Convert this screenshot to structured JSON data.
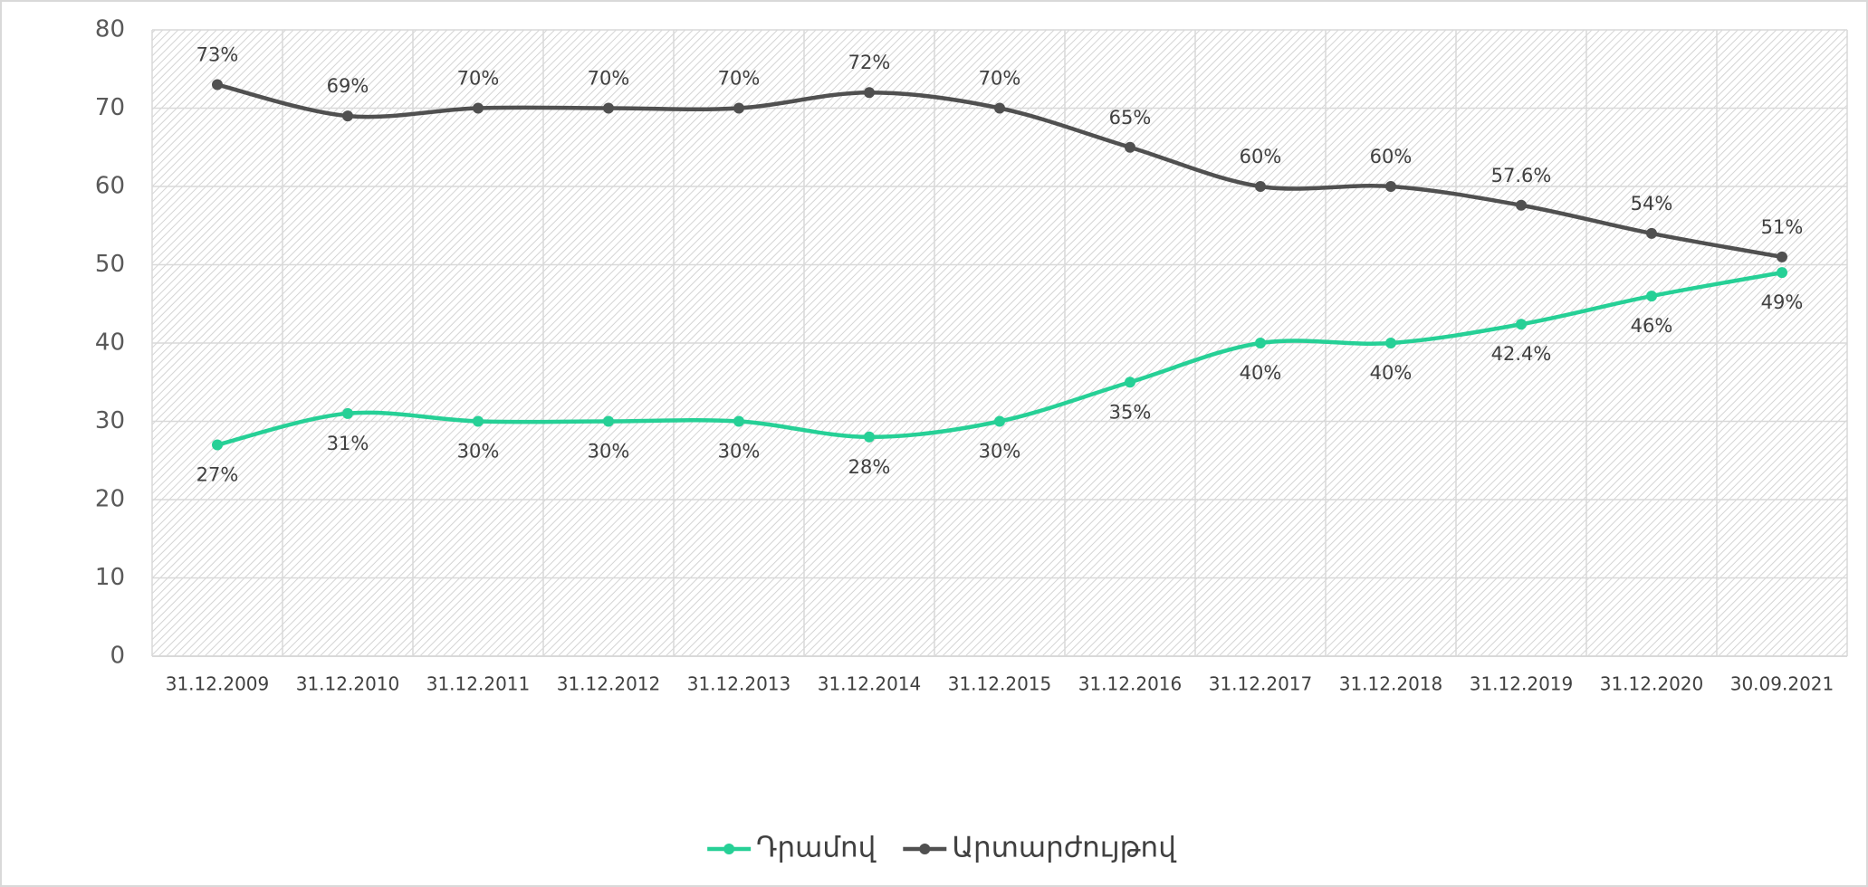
{
  "chart_data": {
    "type": "line",
    "categories": [
      "31.12.2009",
      "31.12.2010",
      "31.12.2011",
      "31.12.2012",
      "31.12.2013",
      "31.12.2014",
      "31.12.2015",
      "31.12.2016",
      "31.12.2017",
      "31.12.2018",
      "31.12.2019",
      "31.12.2020",
      "30.09.2021"
    ],
    "series": [
      {
        "name": "Դրամով",
        "color": "#26d096",
        "values": [
          27,
          31,
          30,
          30,
          30,
          28,
          30,
          35,
          40,
          40,
          42.4,
          46,
          49
        ],
        "value_labels": [
          "27%",
          "31%",
          "30%",
          "30%",
          "30%",
          "28%",
          "30%",
          "35%",
          "40%",
          "40%",
          "42.4%",
          "46%",
          "49%"
        ]
      },
      {
        "name": "Արտարժույթով",
        "color": "#505050",
        "values": [
          73,
          69,
          70,
          70,
          70,
          72,
          70,
          65,
          60,
          60,
          57.6,
          54,
          51
        ],
        "value_labels": [
          "73%",
          "69%",
          "70%",
          "70%",
          "70%",
          "72%",
          "70%",
          "65%",
          "60%",
          "60%",
          "57.6%",
          "54%",
          "51%"
        ]
      }
    ],
    "ylim": [
      0,
      80
    ],
    "yticks": [
      0,
      10,
      20,
      30,
      40,
      50,
      60,
      70,
      80
    ],
    "grid": true,
    "legend": "bottom"
  }
}
